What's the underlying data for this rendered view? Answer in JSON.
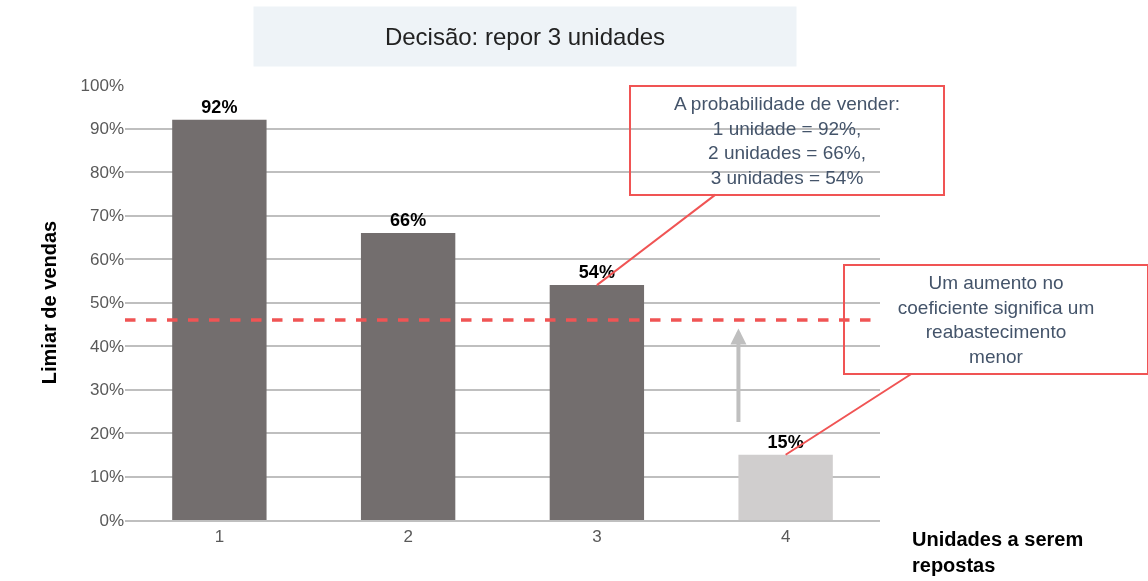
{
  "chart_data": {
    "type": "bar",
    "title": "Decisão: repor 3 unidades",
    "categories": [
      "1",
      "2",
      "3",
      "4"
    ],
    "values": [
      92,
      66,
      54,
      15
    ],
    "colors": [
      "#736e6e",
      "#736e6e",
      "#736e6e",
      "#d0cece"
    ],
    "value_labels": [
      "92%",
      "66%",
      "54%",
      "15%"
    ],
    "ylim": [
      0,
      100
    ],
    "yticks": [
      {
        "value": 0,
        "label": "0%"
      },
      {
        "value": 10,
        "label": "10%"
      },
      {
        "value": 20,
        "label": "20%"
      },
      {
        "value": 30,
        "label": "30%"
      },
      {
        "value": 40,
        "label": "40%"
      },
      {
        "value": 50,
        "label": "50%"
      },
      {
        "value": 60,
        "label": "60%"
      },
      {
        "value": 70,
        "label": "70%"
      },
      {
        "value": 80,
        "label": "80%"
      },
      {
        "value": 90,
        "label": "90%"
      },
      {
        "value": 100,
        "label": "100%"
      }
    ],
    "grid": "y",
    "legend": false,
    "xlabel": "Unidades a serem repostas",
    "ylabel": "Limiar de vendas",
    "ref_lines": [
      {
        "axis": "y",
        "value": 46,
        "label": null,
        "color": "#f05454",
        "line_style": "dashed"
      }
    ],
    "annotations": [
      {
        "text": "A probabilidade de vender:\n1 unidade = 92%,\n2 unidades = 66%,\n3 unidades = 54%",
        "x": "3",
        "y": 54
      },
      {
        "text": "Um aumento no\ncoeficiente significa um\nreabastecimento\nmenor",
        "x": "4",
        "y": 15
      }
    ]
  }
}
